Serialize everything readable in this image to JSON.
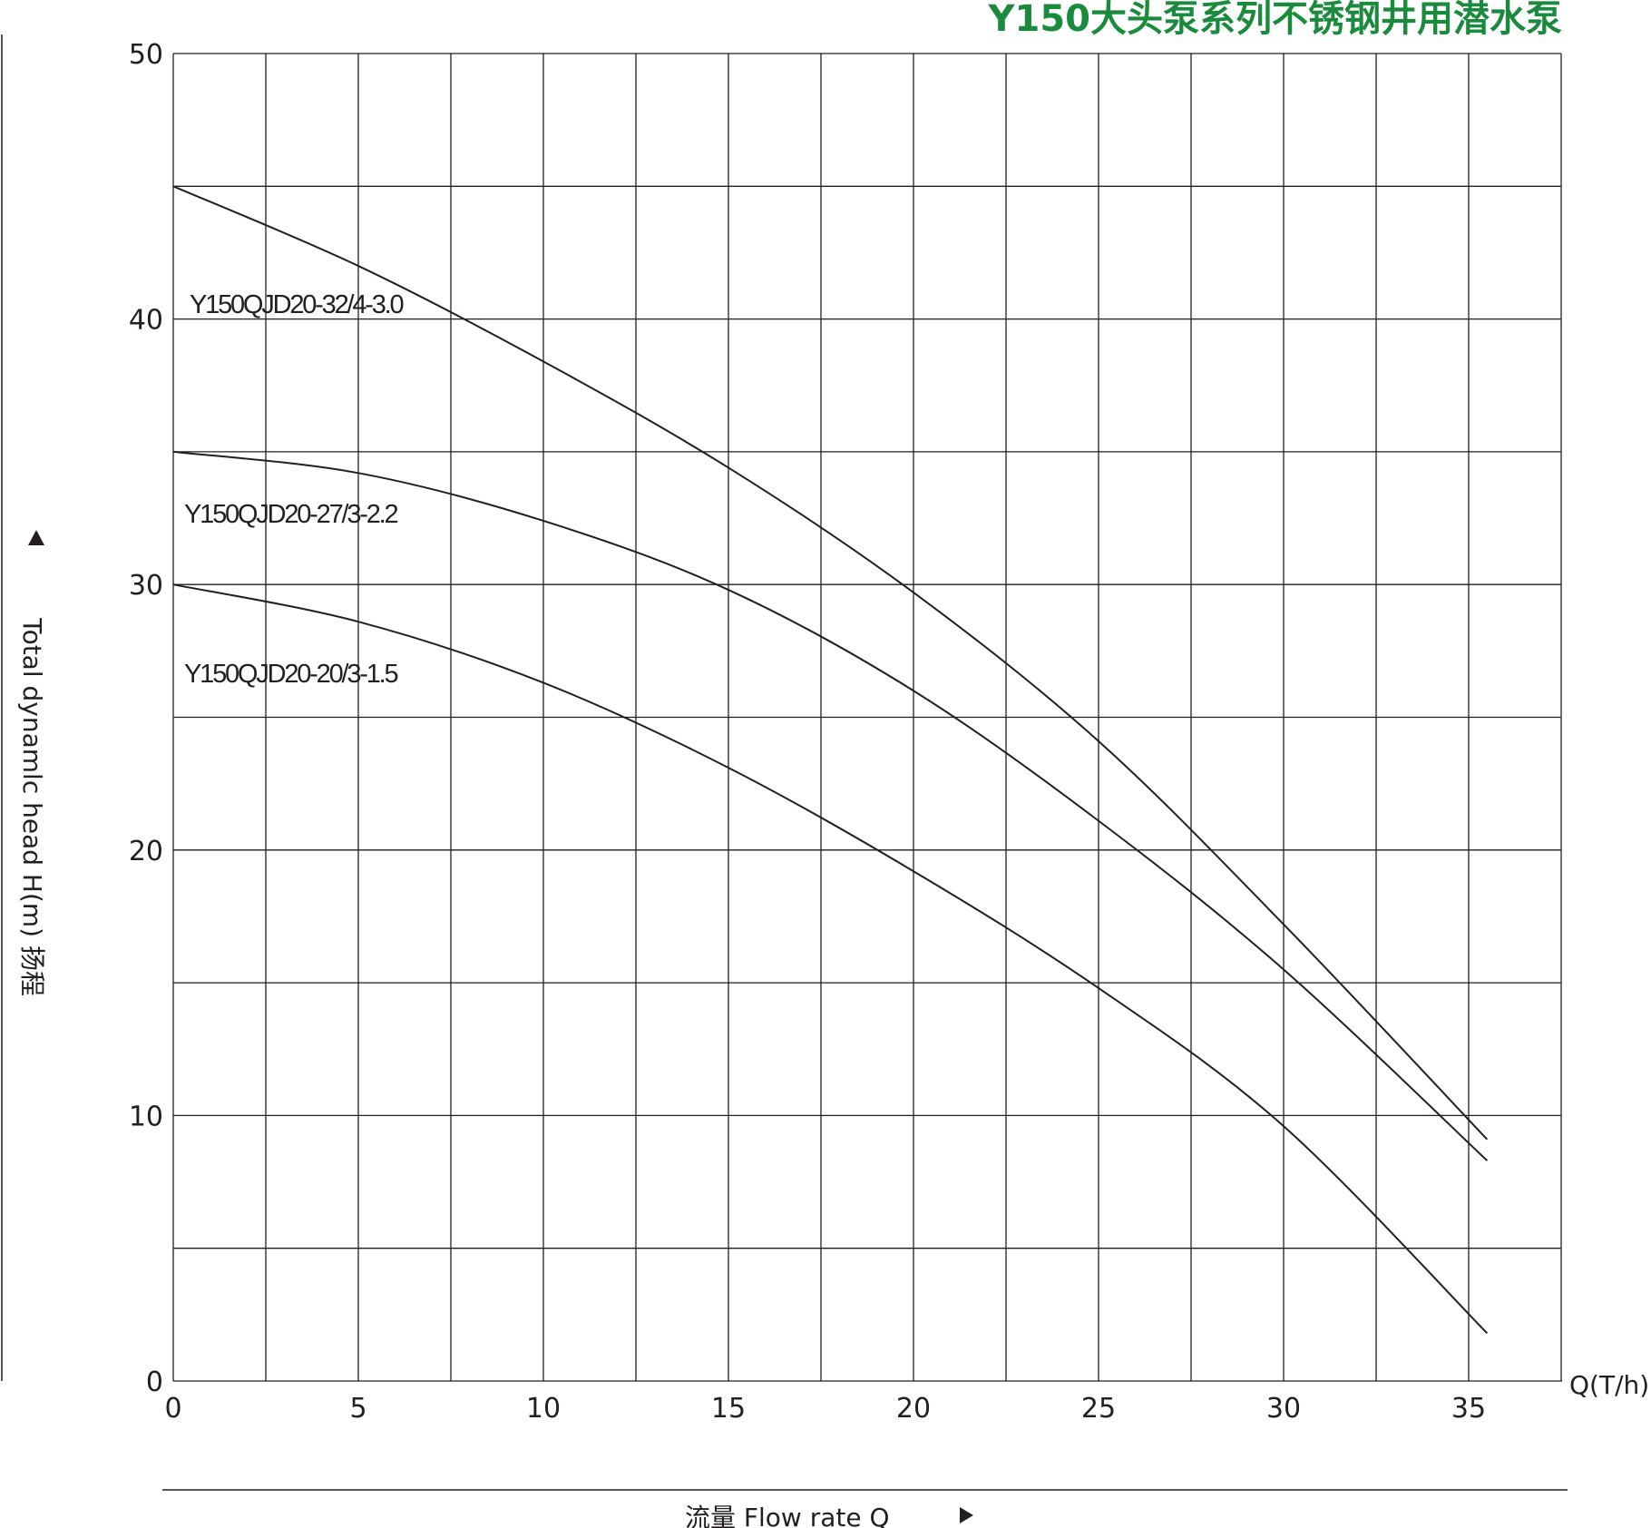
{
  "chart_data": {
    "type": "line",
    "title": "Y150大头泵系列不锈钢井用潜水泵",
    "xlabel": "流量  Flow rate Q",
    "xunit": "Q(T/h)",
    "ylabel": "Total dynamlc head H(m) 扬程",
    "xlim": [
      0,
      37.5
    ],
    "ylim": [
      0,
      50
    ],
    "xticks": [
      "0",
      "5",
      "10",
      "15",
      "20",
      "25",
      "30",
      "35"
    ],
    "yticks": [
      "0",
      "10",
      "20",
      "30",
      "40",
      "50"
    ],
    "grid": true,
    "series": [
      {
        "name": "Y150QJD20-32/4-3.0",
        "x": [
          0,
          5,
          10,
          15,
          20,
          25,
          30,
          35.5
        ],
        "y": [
          45,
          42,
          38.4,
          34.4,
          29.7,
          24.1,
          17.2,
          9.1
        ]
      },
      {
        "name": "Y150QJD20-27/3-2.2",
        "x": [
          0,
          5,
          10,
          15,
          20,
          25,
          30,
          35.5
        ],
        "y": [
          35,
          34.2,
          32.4,
          29.8,
          26,
          21.1,
          15.5,
          8.3
        ]
      },
      {
        "name": "Y150QJD20-20/3-1.5",
        "x": [
          0,
          5,
          10,
          15,
          20,
          25,
          30,
          35.5
        ],
        "y": [
          30,
          28.6,
          26.3,
          23.1,
          19.2,
          14.8,
          9.6,
          1.8
        ]
      }
    ],
    "colors": {
      "title": "#1a8a3c",
      "line": "#231f20",
      "grid": "#231f20"
    }
  }
}
